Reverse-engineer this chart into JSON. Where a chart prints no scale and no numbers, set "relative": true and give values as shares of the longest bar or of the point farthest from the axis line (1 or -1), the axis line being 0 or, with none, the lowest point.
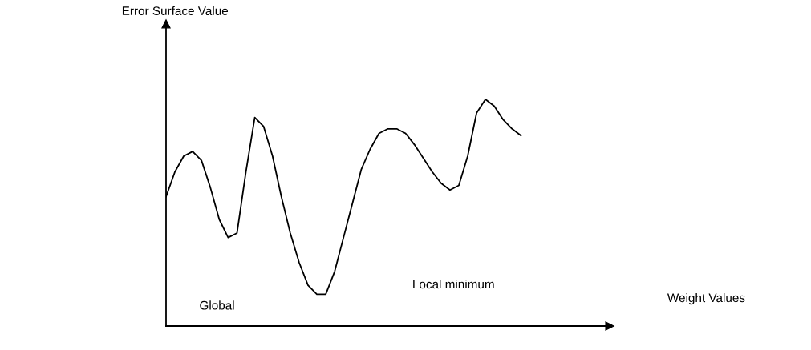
{
  "chart_data": {
    "type": "line",
    "relative": true,
    "color": "#000000",
    "marker": "none",
    "line_style": "solid",
    "annotations": [
      "Global",
      "Local minimum",
      "Error Surface Value",
      "Weight Values"
    ],
    "categories": [
      null,
      null,
      null,
      null,
      null,
      null,
      null,
      null,
      null,
      null,
      null,
      null,
      null,
      null,
      null,
      null,
      null,
      null,
      null,
      null,
      null,
      null,
      null,
      null,
      null,
      null,
      null,
      null,
      null,
      null,
      null,
      null,
      null,
      null,
      null,
      null,
      null,
      null,
      null,
      null,
      null
    ],
    "values": [
      0.57,
      0.68,
      0.75,
      0.77,
      0.73,
      0.61,
      0.47,
      0.39,
      0.41,
      0.68,
      0.92,
      0.88,
      0.75,
      0.57,
      0.41,
      0.28,
      0.18,
      0.14,
      0.14,
      0.24,
      0.39,
      0.54,
      0.69,
      0.78,
      0.85,
      0.87,
      0.87,
      0.85,
      0.8,
      0.74,
      0.68,
      0.63,
      0.6,
      0.62,
      0.75,
      0.94,
      1,
      0.97,
      0.91,
      0.87,
      0.84
    ]
  }
}
